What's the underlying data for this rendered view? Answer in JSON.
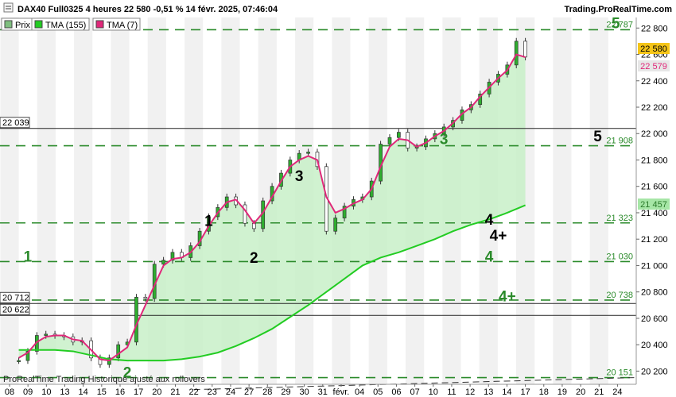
{
  "header": {
    "title": "DAX40 Full0325 4 heures 22 580 -0,51 % 14 févr. 2025, 07:46:04",
    "site": "Trading.ProRealTime.com"
  },
  "legend": [
    {
      "label": "Prix",
      "color": "#7fbf7f"
    },
    {
      "label": "TMA (155)",
      "color": "#22cc22"
    },
    {
      "label": "TMA (7)",
      "color": "#e0287a"
    }
  ],
  "price_badges": {
    "last": "22 580",
    "tma7": "22 579"
  },
  "footer": "ProRealTime Trading  Historique ajusté aux rollovers",
  "chart_data": {
    "type": "line",
    "title": "DAX40 Full0325 4 heures",
    "y_range": [
      20100,
      22880
    ],
    "y_ticks": [
      "20 200",
      "20 400",
      "20 600",
      "20 800",
      "21 000",
      "21 200",
      "21 400",
      "21 600",
      "21 800",
      "22 000",
      "22 200",
      "22 400",
      "22 600",
      "22 800"
    ],
    "x_ticks": [
      "08",
      "09",
      "10",
      "13",
      "14",
      "15",
      "16",
      "17",
      "20",
      "21",
      "22",
      "23",
      "24",
      "27",
      "28",
      "29",
      "30",
      "31",
      "févr.",
      "04",
      "05",
      "06",
      "07",
      "10",
      "11",
      "12",
      "13",
      "14",
      "17",
      "18",
      "19",
      "20",
      "21",
      "24"
    ],
    "x_range": [
      0,
      33.5
    ],
    "price": {
      "x": [
        0,
        0.5,
        1,
        1.5,
        2,
        2.5,
        3,
        3.5,
        4,
        4.5,
        5,
        5.5,
        6,
        6.5,
        7,
        7.5,
        8,
        8.5,
        9,
        9.5,
        10,
        10.5,
        11,
        11.5,
        12,
        12.5,
        13,
        13.5,
        14,
        14.5,
        15,
        15.5,
        16,
        16.5,
        17,
        17.5,
        18,
        18.5,
        19,
        19.5,
        20,
        20.5,
        21,
        21.5,
        22,
        22.5,
        23,
        23.5,
        24,
        24.5,
        25,
        25.5,
        26,
        26.5,
        27,
        27.5,
        28
      ],
      "values": [
        20280,
        20350,
        20470,
        20480,
        20470,
        20460,
        20420,
        20430,
        20300,
        20250,
        20300,
        20400,
        20420,
        20760,
        20750,
        21010,
        21040,
        21100,
        21060,
        21150,
        21260,
        21370,
        21440,
        21520,
        21460,
        21320,
        21280,
        21490,
        21600,
        21700,
        21800,
        21850,
        21860,
        21750,
        21260,
        21360,
        21450,
        21500,
        21520,
        21640,
        21920,
        21970,
        22010,
        21890,
        21900,
        21960,
        22000,
        22050,
        22100,
        22180,
        22220,
        22300,
        22390,
        22450,
        22520,
        22700,
        22580
      ]
    },
    "tma7": {
      "x": [
        0,
        0.5,
        1,
        1.5,
        2,
        2.5,
        3,
        3.5,
        4,
        4.5,
        5,
        5.5,
        6,
        6.5,
        7,
        7.5,
        8,
        8.5,
        9,
        9.5,
        10,
        10.5,
        11,
        11.5,
        12,
        12.5,
        13,
        13.5,
        14,
        14.5,
        15,
        15.5,
        16,
        16.5,
        17,
        17.5,
        18,
        18.5,
        19,
        19.5,
        20,
        20.5,
        21,
        21.5,
        22,
        22.5,
        23,
        23.5,
        24,
        24.5,
        25,
        25.5,
        26,
        26.5,
        27,
        27.5,
        28
      ],
      "values": [
        20300,
        20340,
        20420,
        20460,
        20470,
        20470,
        20440,
        20430,
        20360,
        20290,
        20280,
        20330,
        20380,
        20550,
        20700,
        20850,
        21000,
        21050,
        21060,
        21100,
        21180,
        21300,
        21400,
        21480,
        21500,
        21420,
        21320,
        21400,
        21520,
        21640,
        21750,
        21800,
        21830,
        21800,
        21520,
        21400,
        21430,
        21470,
        21500,
        21580,
        21750,
        21900,
        21960,
        21950,
        21900,
        21930,
        21980,
        22020,
        22080,
        22150,
        22200,
        22280,
        22350,
        22420,
        22480,
        22600,
        22579
      ]
    },
    "tma155": {
      "x": [
        0,
        1,
        2,
        3,
        4,
        5,
        6,
        7,
        8,
        9,
        10,
        11,
        12,
        13,
        14,
        15,
        16,
        17,
        18,
        19,
        20,
        21,
        22,
        23,
        24,
        25,
        26,
        27,
        28
      ],
      "values": [
        20360,
        20360,
        20360,
        20350,
        20320,
        20290,
        20280,
        20280,
        20280,
        20290,
        20310,
        20340,
        20390,
        20450,
        20520,
        20610,
        20700,
        20800,
        20900,
        21000,
        21060,
        21100,
        21150,
        21200,
        21260,
        21310,
        21350,
        21400,
        21457
      ]
    },
    "levels_dashed": [
      {
        "value": 22787,
        "label": "22 787"
      },
      {
        "value": 21908,
        "label": "21 908"
      },
      {
        "value": 21323,
        "label": "21 323"
      },
      {
        "value": 21030,
        "label": "21 030"
      },
      {
        "value": 20738,
        "label": "20 738"
      },
      {
        "value": 20151,
        "label": "20 151"
      }
    ],
    "levels_solid": [
      {
        "value": 22039,
        "label": "22 039"
      },
      {
        "value": 20712,
        "label": "20 712"
      },
      {
        "value": 20622,
        "label": "20 622"
      }
    ],
    "tma155_badge": "21 457",
    "wave_labels": [
      {
        "text": "1",
        "x": 0.5,
        "y": 21030,
        "color": "#2a8a2a"
      },
      {
        "text": "2",
        "x": 6.0,
        "y": 20150,
        "color": "#2a8a2a"
      },
      {
        "text": "3",
        "x": 23.5,
        "y": 21920,
        "color": "#2a8a2a"
      },
      {
        "text": "4",
        "x": 26.0,
        "y": 21030,
        "color": "#2a8a2a"
      },
      {
        "text": "4+",
        "x": 27.0,
        "y": 20730,
        "color": "#2a8a2a"
      },
      {
        "text": "5",
        "x": 33.0,
        "y": 22800,
        "color": "#2a8a2a"
      },
      {
        "text": "1",
        "x": 10.5,
        "y": 21300,
        "color": "#000000"
      },
      {
        "text": "2",
        "x": 13.0,
        "y": 21020,
        "color": "#000000"
      },
      {
        "text": "3",
        "x": 15.5,
        "y": 21640,
        "color": "#000000"
      },
      {
        "text": "4",
        "x": 26.0,
        "y": 21310,
        "color": "#000000"
      },
      {
        "text": "4+",
        "x": 26.5,
        "y": 21190,
        "color": "#000000"
      },
      {
        "text": "5",
        "x": 32.0,
        "y": 21940,
        "color": "#000000"
      }
    ]
  }
}
